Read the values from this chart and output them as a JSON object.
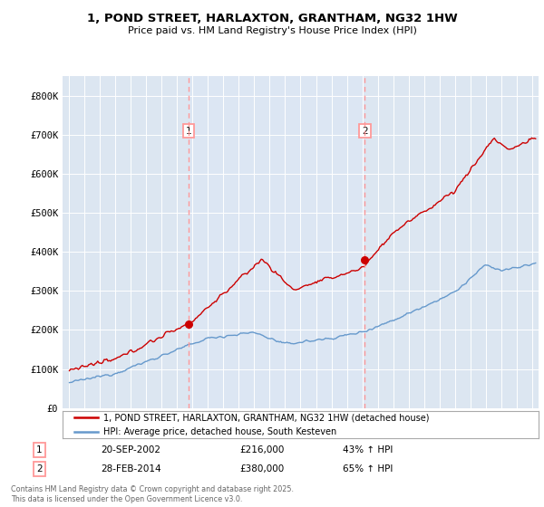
{
  "title": "1, POND STREET, HARLAXTON, GRANTHAM, NG32 1HW",
  "subtitle": "Price paid vs. HM Land Registry's House Price Index (HPI)",
  "legend_line1": "1, POND STREET, HARLAXTON, GRANTHAM, NG32 1HW (detached house)",
  "legend_line2": "HPI: Average price, detached house, South Kesteven",
  "footer": "Contains HM Land Registry data © Crown copyright and database right 2025.\nThis data is licensed under the Open Government Licence v3.0.",
  "transaction1_label": "1",
  "transaction1_date": "20-SEP-2002",
  "transaction1_price": "£216,000",
  "transaction1_hpi": "43% ↑ HPI",
  "transaction2_label": "2",
  "transaction2_date": "28-FEB-2014",
  "transaction2_price": "£380,000",
  "transaction2_hpi": "65% ↑ HPI",
  "red_color": "#cc0000",
  "blue_color": "#6699cc",
  "dashed_color": "#ff9999",
  "shade_color": "#dce6f5",
  "background_color": "#dce6f1",
  "ylim": [
    0,
    850000
  ],
  "yticks": [
    0,
    100000,
    200000,
    300000,
    400000,
    500000,
    600000,
    700000,
    800000
  ],
  "ytick_labels": [
    "£0",
    "£100K",
    "£200K",
    "£300K",
    "£400K",
    "£500K",
    "£600K",
    "£700K",
    "£800K"
  ],
  "transaction1_x": 2002.75,
  "transaction2_x": 2014.16,
  "transaction1_y": 216000,
  "transaction2_y": 380000,
  "xlim_left": 1994.6,
  "xlim_right": 2025.4
}
